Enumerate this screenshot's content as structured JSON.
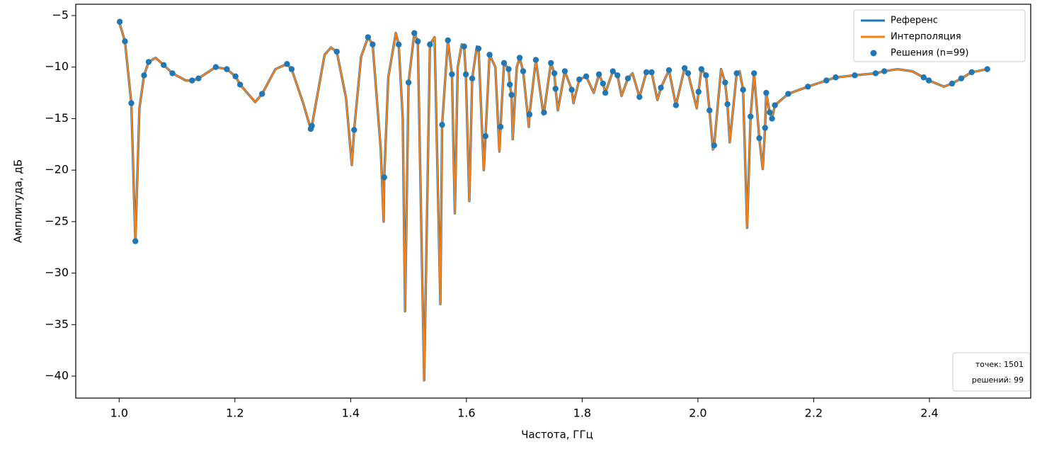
{
  "chart_data": {
    "type": "line",
    "xlabel": "Частота, ГГц",
    "ylabel": "Амплитуда, дБ",
    "xlim": [
      0.925,
      2.575
    ],
    "ylim": [
      -42.13,
      -3.9
    ],
    "xticks": [
      {
        "value": 1,
        "label": "1.0"
      },
      1.2,
      1.4,
      1.6,
      1.8,
      {
        "value": 2,
        "label": "2.0"
      },
      2.2,
      2.4
    ],
    "yticks": [
      {
        "value": -5,
        "label": "−5"
      },
      {
        "value": -10,
        "label": "−10"
      },
      {
        "value": -15,
        "label": "−15"
      },
      {
        "value": -20,
        "label": "−20"
      },
      {
        "value": -25,
        "label": "−25"
      },
      {
        "value": -30,
        "label": "−30"
      },
      {
        "value": -35,
        "label": "−35"
      },
      {
        "value": -40,
        "label": "−40"
      }
    ],
    "legend": "upper right",
    "annotations": [
      "точек: 1501",
      "решений: 99"
    ],
    "x": [
      1.0,
      1.01,
      1.021,
      1.028,
      1.035,
      1.043,
      1.051,
      1.063,
      1.077,
      1.092,
      1.115,
      1.126,
      1.137,
      1.167,
      1.186,
      1.201,
      1.209,
      1.235,
      1.247,
      1.27,
      1.29,
      1.298,
      1.318,
      1.331,
      1.333,
      1.355,
      1.366,
      1.376,
      1.392,
      1.402,
      1.406,
      1.418,
      1.43,
      1.438,
      1.452,
      1.457,
      1.458,
      1.465,
      1.478,
      1.483,
      1.49,
      1.494,
      1.5,
      1.51,
      1.516,
      1.527,
      1.537,
      1.545,
      1.555,
      1.558,
      1.568,
      1.575,
      1.58,
      1.585,
      1.592,
      1.596,
      1.599,
      1.605,
      1.61,
      1.618,
      1.621,
      1.63,
      1.633,
      1.64,
      1.65,
      1.657,
      1.659,
      1.665,
      1.673,
      1.675,
      1.678,
      1.68,
      1.687,
      1.692,
      1.698,
      1.708,
      1.709,
      1.72,
      1.733,
      1.734,
      1.746,
      1.752,
      1.754,
      1.758,
      1.77,
      1.782,
      1.785,
      1.795,
      1.807,
      1.82,
      1.829,
      1.836,
      1.84,
      1.853,
      1.861,
      1.868,
      1.879,
      1.887,
      1.899,
      1.911,
      1.92,
      1.93,
      1.936,
      1.95,
      1.962,
      1.977,
      1.983,
      1.998,
      2.001,
      2.006,
      2.014,
      2.02,
      2.026,
      2.028,
      2.04,
      2.047,
      2.051,
      2.055,
      2.067,
      2.072,
      2.078,
      2.085,
      2.091,
      2.097,
      2.106,
      2.112,
      2.116,
      2.118,
      2.124,
      2.128,
      2.133,
      2.156,
      2.19,
      2.222,
      2.238,
      2.271,
      2.307,
      2.322,
      2.345,
      2.37,
      2.39,
      2.399,
      2.425,
      2.439,
      2.455,
      2.473,
      2.5
    ],
    "series": [
      {
        "name": "Референс",
        "color": "#1f77b4",
        "values": [
          -5.6,
          -7.5,
          -13.5,
          -27.0,
          -14,
          -10.8,
          -9.5,
          -9.1,
          -9.8,
          -10.6,
          -11.3,
          -11.3,
          -11.1,
          -10.0,
          -10.2,
          -10.9,
          -11.7,
          -13.4,
          -12.6,
          -10.2,
          -9.7,
          -10.2,
          -13.5,
          -16.0,
          -15.7,
          -8.8,
          -8.1,
          -8.5,
          -13,
          -19.5,
          -16.1,
          -9,
          -7.1,
          -7.8,
          -18,
          -25.0,
          -20.7,
          -11,
          -6.7,
          -7.8,
          -15,
          -33.7,
          -11.5,
          -6.7,
          -7.5,
          -40.4,
          -7.8,
          -7.1,
          -33,
          -15.6,
          -7.4,
          -10.7,
          -24.2,
          -10,
          -7.8,
          -8.0,
          -10.7,
          -23.0,
          -11.1,
          -8.0,
          -8.2,
          -20.0,
          -16.7,
          -8.8,
          -10,
          -18.2,
          -15.8,
          -9.6,
          -10.2,
          -11.7,
          -12.7,
          -17.0,
          -10,
          -9.1,
          -10.4,
          -15.8,
          -14.6,
          -9.3,
          -14.6,
          -14.4,
          -9.6,
          -10.6,
          -12.1,
          -14.2,
          -10.4,
          -12.2,
          -13.5,
          -11.2,
          -10.9,
          -12.5,
          -10.7,
          -11.6,
          -12.5,
          -10.4,
          -10.8,
          -12.8,
          -11.1,
          -10.6,
          -12.9,
          -10.5,
          -10.5,
          -13.2,
          -12.0,
          -10.3,
          -13.7,
          -10.1,
          -10.6,
          -14.0,
          -12.4,
          -10.2,
          -10.8,
          -14.2,
          -18.0,
          -17.6,
          -10.2,
          -11.5,
          -13.6,
          -17.3,
          -10.6,
          -10.4,
          -12.2,
          -25.6,
          -14.8,
          -10.6,
          -16.9,
          -19.9,
          -15.9,
          -12.5,
          -14.4,
          -15.0,
          -13.7,
          -12.6,
          -11.9,
          -11.3,
          -11.0,
          -10.8,
          -10.6,
          -10.4,
          -10.2,
          -10.4,
          -11.0,
          -11.3,
          -11.9,
          -11.6,
          -11.1,
          -10.5,
          -10.2
        ]
      },
      {
        "name": "Интерполяция",
        "color": "#ff7f0e",
        "values": [
          -5.6,
          -7.5,
          -13.5,
          -27.0,
          -14,
          -10.8,
          -9.5,
          -9.1,
          -9.8,
          -10.6,
          -11.3,
          -11.3,
          -11.1,
          -10.0,
          -10.2,
          -10.9,
          -11.7,
          -13.4,
          -12.6,
          -10.2,
          -9.7,
          -10.2,
          -13.5,
          -16.0,
          -15.7,
          -8.8,
          -8.1,
          -8.5,
          -13,
          -19.5,
          -16.1,
          -9,
          -7.1,
          -7.8,
          -18,
          -25.0,
          -20.7,
          -11,
          -6.7,
          -7.8,
          -15,
          -33.7,
          -11.5,
          -6.7,
          -7.5,
          -40.4,
          -7.8,
          -7.1,
          -33,
          -15.6,
          -7.4,
          -10.7,
          -24.2,
          -10,
          -7.8,
          -8.0,
          -10.7,
          -23.0,
          -11.1,
          -8.0,
          -8.2,
          -20.0,
          -16.7,
          -8.8,
          -10,
          -18.2,
          -15.8,
          -9.6,
          -10.2,
          -11.7,
          -12.7,
          -17.0,
          -10,
          -9.1,
          -10.4,
          -15.8,
          -14.6,
          -9.3,
          -14.6,
          -14.4,
          -9.6,
          -10.6,
          -12.1,
          -14.2,
          -10.4,
          -12.2,
          -13.5,
          -11.2,
          -10.9,
          -12.5,
          -10.7,
          -11.6,
          -12.5,
          -10.4,
          -10.8,
          -12.8,
          -11.1,
          -10.6,
          -12.9,
          -10.5,
          -10.5,
          -13.2,
          -12.0,
          -10.3,
          -13.7,
          -10.1,
          -10.6,
          -14.0,
          -12.4,
          -10.2,
          -10.8,
          -14.2,
          -18.0,
          -17.6,
          -10.2,
          -11.5,
          -13.6,
          -17.3,
          -10.6,
          -10.4,
          -12.2,
          -25.6,
          -14.8,
          -10.6,
          -16.9,
          -19.9,
          -15.9,
          -12.5,
          -14.4,
          -15.0,
          -13.7,
          -12.6,
          -11.9,
          -11.3,
          -11.0,
          -10.8,
          -10.6,
          -10.4,
          -10.2,
          -10.4,
          -11.0,
          -11.3,
          -11.9,
          -11.6,
          -11.1,
          -10.5,
          -10.2
        ]
      },
      {
        "name": "Решения (n=99)",
        "color": "#1f77b4",
        "type": "scatter",
        "x": [
          1.001,
          1.01,
          1.021,
          1.028,
          1.043,
          1.051,
          1.077,
          1.092,
          1.126,
          1.137,
          1.167,
          1.186,
          1.201,
          1.209,
          1.247,
          1.29,
          1.298,
          1.331,
          1.333,
          1.376,
          1.406,
          1.43,
          1.438,
          1.458,
          1.483,
          1.5,
          1.51,
          1.516,
          1.537,
          1.558,
          1.568,
          1.575,
          1.596,
          1.599,
          1.61,
          1.621,
          1.633,
          1.64,
          1.659,
          1.665,
          1.673,
          1.675,
          1.678,
          1.692,
          1.698,
          1.709,
          1.72,
          1.734,
          1.746,
          1.752,
          1.754,
          1.77,
          1.782,
          1.795,
          1.807,
          1.829,
          1.836,
          1.84,
          1.853,
          1.861,
          1.879,
          1.899,
          1.911,
          1.92,
          1.936,
          1.95,
          1.962,
          1.977,
          1.983,
          2.001,
          2.006,
          2.014,
          2.02,
          2.028,
          2.047,
          2.051,
          2.067,
          2.078,
          2.091,
          2.097,
          2.106,
          2.116,
          2.118,
          2.124,
          2.128,
          2.133,
          2.156,
          2.19,
          2.222,
          2.238,
          2.271,
          2.307,
          2.322,
          2.39,
          2.399,
          2.439,
          2.455,
          2.473,
          2.5
        ],
        "values": [
          -5.6,
          -7.5,
          -13.5,
          -26.9,
          -10.8,
          -9.5,
          -9.8,
          -10.6,
          -11.3,
          -11.1,
          -10.0,
          -10.2,
          -10.9,
          -11.7,
          -12.6,
          -9.7,
          -10.2,
          -16.0,
          -15.7,
          -8.5,
          -16.1,
          -7.1,
          -7.8,
          -20.7,
          -7.8,
          -11.5,
          -6.7,
          -7.5,
          -7.8,
          -15.6,
          -7.4,
          -10.7,
          -8.0,
          -10.7,
          -11.1,
          -8.2,
          -16.7,
          -8.8,
          -15.8,
          -9.6,
          -10.2,
          -11.7,
          -12.7,
          -9.1,
          -10.4,
          -14.6,
          -9.3,
          -14.4,
          -9.6,
          -10.6,
          -12.1,
          -10.4,
          -12.2,
          -11.2,
          -10.9,
          -10.7,
          -11.6,
          -12.5,
          -10.4,
          -10.8,
          -11.1,
          -12.9,
          -10.5,
          -10.5,
          -12.0,
          -10.3,
          -13.7,
          -10.1,
          -10.6,
          -12.4,
          -10.2,
          -10.8,
          -14.2,
          -17.6,
          -11.5,
          -13.6,
          -10.6,
          -12.2,
          -14.8,
          -10.6,
          -16.9,
          -15.9,
          -12.5,
          -14.4,
          -15.0,
          -13.7,
          -12.6,
          -11.9,
          -11.3,
          -11.0,
          -10.8,
          -10.6,
          -10.4,
          -11.0,
          -11.3,
          -11.6,
          -11.1,
          -10.5,
          -10.2
        ]
      }
    ]
  }
}
